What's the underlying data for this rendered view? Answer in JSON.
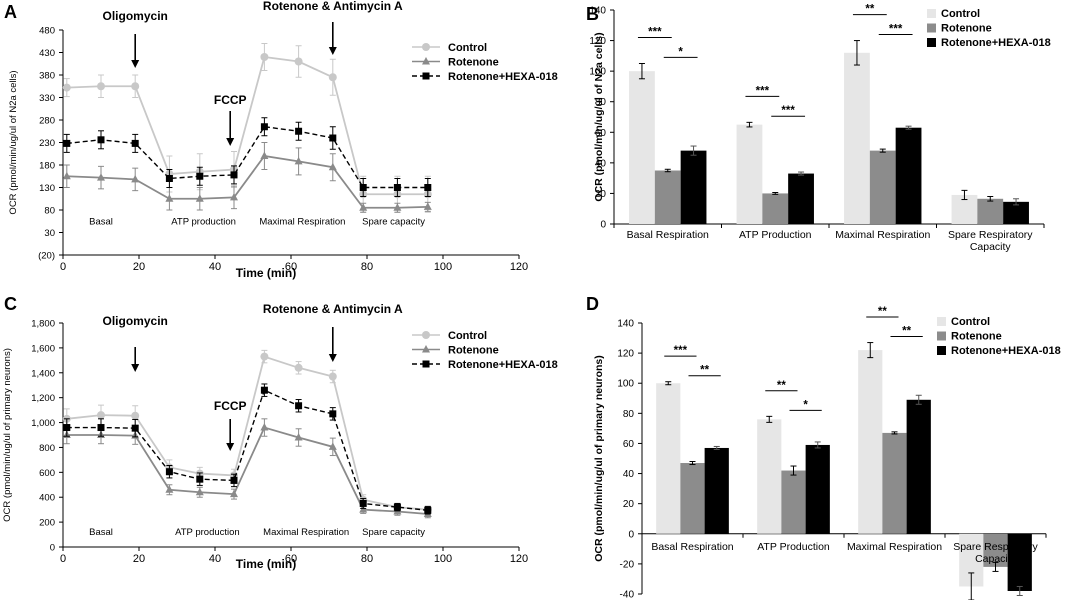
{
  "chart_data": [
    {
      "id": "A",
      "type": "line",
      "panel_label": "A",
      "ylabel": "OCR (pmol/min/ug/ul of N2a cells)",
      "xlabel": "Time (min)",
      "x": [
        1,
        10,
        19,
        28,
        36,
        45,
        53,
        62,
        71,
        79,
        88,
        96
      ],
      "xlim": [
        0,
        120
      ],
      "xticks": [
        0,
        20,
        40,
        60,
        80,
        100,
        120
      ],
      "xtick_labels": [
        "0",
        "20",
        "40",
        "60",
        "80",
        "100",
        "120"
      ],
      "ylim": [
        -20,
        480
      ],
      "yticks": [
        -20,
        30,
        80,
        130,
        180,
        230,
        280,
        330,
        380,
        430,
        480
      ],
      "ytick_labels": [
        "(20)",
        "30",
        "80",
        "130",
        "180",
        "230",
        "280",
        "330",
        "380",
        "430",
        "480"
      ],
      "series": [
        {
          "name": "Control",
          "color": "#c8c8c8",
          "marker": "circle",
          "dash": false,
          "values": [
            352,
            355,
            355,
            160,
            165,
            170,
            420,
            410,
            375,
            115,
            115,
            115
          ],
          "errors": [
            20,
            25,
            25,
            40,
            40,
            40,
            30,
            35,
            40,
            40,
            40,
            40
          ]
        },
        {
          "name": "Rotenone",
          "color": "#8a8a8a",
          "marker": "triangle",
          "dash": false,
          "values": [
            155,
            152,
            148,
            105,
            105,
            108,
            200,
            188,
            175,
            85,
            85,
            87
          ],
          "errors": [
            25,
            25,
            25,
            25,
            25,
            25,
            30,
            30,
            30,
            10,
            10,
            10
          ]
        },
        {
          "name": "Rotenone+HEXA-018",
          "color": "#000000",
          "marker": "square",
          "dash": true,
          "values": [
            228,
            236,
            228,
            150,
            155,
            158,
            265,
            255,
            240,
            130,
            130,
            130
          ],
          "errors": [
            20,
            20,
            20,
            20,
            20,
            20,
            20,
            20,
            25,
            20,
            20,
            20
          ]
        }
      ],
      "annotations": [
        {
          "text": "Oligomycin",
          "x": 19,
          "kind": "arrow"
        },
        {
          "text": "FCCP",
          "x": 44,
          "kind": "arrow"
        },
        {
          "text": "Rotenone & Antimycin A",
          "x": 71,
          "kind": "arrow"
        }
      ],
      "phase_labels": [
        {
          "text": "Basal",
          "x": 10
        },
        {
          "text": "ATP  production",
          "x": 37
        },
        {
          "text": "Maximal Respiration",
          "x": 63
        },
        {
          "text": "Spare capacity",
          "x": 87
        }
      ],
      "phase_value": 55
    },
    {
      "id": "B",
      "type": "bar",
      "panel_label": "B",
      "ylabel": "OCR (pmol/min/ug/ul of N2a cells)",
      "categories": [
        "Basal Respiration",
        "ATP Production",
        "Maximal Respiration",
        "Spare Respiratory Capacity"
      ],
      "category_lines": [
        [
          "Basal Respiration"
        ],
        [
          "ATP Production"
        ],
        [
          "Maximal Respiration"
        ],
        [
          "Spare Respiratory",
          "Capacity"
        ]
      ],
      "ylim": [
        0,
        140
      ],
      "yticks": [
        0,
        20,
        40,
        60,
        80,
        100,
        120,
        140
      ],
      "series": [
        {
          "name": "Control",
          "color": "#e6e6e6",
          "values": [
            100,
            65,
            112,
            19
          ],
          "errors": [
            5,
            1.5,
            8,
            3
          ]
        },
        {
          "name": "Rotenone",
          "color": "#8c8c8c",
          "values": [
            35,
            20,
            48,
            16.5
          ],
          "errors": [
            0.8,
            0.6,
            1,
            1.5
          ]
        },
        {
          "name": "Rotenone+HEXA-018",
          "color": "#000000",
          "values": [
            48,
            33,
            63,
            14.5
          ],
          "errors": [
            3,
            1,
            1,
            2
          ]
        }
      ],
      "significance": [
        {
          "group": 0,
          "from": 0,
          "to": 1,
          "label": "***"
        },
        {
          "group": 0,
          "from": 1,
          "to": 2,
          "label": "*"
        },
        {
          "group": 1,
          "from": 0,
          "to": 1,
          "label": "***"
        },
        {
          "group": 1,
          "from": 1,
          "to": 2,
          "label": "***"
        },
        {
          "group": 2,
          "from": 0,
          "to": 1,
          "label": "**"
        },
        {
          "group": 2,
          "from": 1,
          "to": 2,
          "label": "***"
        }
      ]
    },
    {
      "id": "C",
      "type": "line",
      "panel_label": "C",
      "ylabel": "OCR (pmol/min/ug/ul of primary neurons)",
      "xlabel": "Time (min)",
      "x": [
        1,
        10,
        19,
        28,
        36,
        45,
        53,
        62,
        71,
        79,
        88,
        96
      ],
      "xlim": [
        0,
        120
      ],
      "xticks": [
        0,
        20,
        40,
        60,
        80,
        100,
        120
      ],
      "xtick_labels": [
        "0",
        "20",
        "40",
        "60",
        "80",
        "100",
        "120"
      ],
      "ylim": [
        0,
        1800
      ],
      "yticks": [
        0,
        200,
        400,
        600,
        800,
        1000,
        1200,
        1400,
        1600,
        1800
      ],
      "ytick_labels": [
        "0",
        "200",
        "400",
        "600",
        "800",
        "1,000",
        "1,200",
        "1,400",
        "1,600",
        "1,800"
      ],
      "series": [
        {
          "name": "Control",
          "color": "#c8c8c8",
          "marker": "circle",
          "dash": false,
          "values": [
            1030,
            1060,
            1055,
            640,
            590,
            575,
            1530,
            1440,
            1370,
            380,
            320,
            300
          ],
          "errors": [
            80,
            80,
            80,
            60,
            50,
            50,
            50,
            50,
            50,
            40,
            30,
            30
          ]
        },
        {
          "name": "Rotenone",
          "color": "#8a8a8a",
          "marker": "triangle",
          "dash": false,
          "values": [
            900,
            900,
            895,
            460,
            440,
            425,
            960,
            880,
            805,
            300,
            285,
            265
          ],
          "errors": [
            70,
            70,
            70,
            40,
            40,
            40,
            70,
            70,
            70,
            30,
            30,
            30
          ]
        },
        {
          "name": "Rotenone+HEXA-018",
          "color": "#000000",
          "marker": "square",
          "dash": true,
          "values": [
            960,
            960,
            955,
            605,
            545,
            535,
            1260,
            1135,
            1070,
            350,
            320,
            295
          ],
          "errors": [
            70,
            70,
            70,
            50,
            50,
            50,
            50,
            50,
            50,
            40,
            30,
            30
          ]
        }
      ],
      "annotations": [
        {
          "text": "Oligomycin",
          "x": 19,
          "kind": "arrow"
        },
        {
          "text": "FCCP",
          "x": 44,
          "kind": "arrow"
        },
        {
          "text": "Rotenone & Antimycin A",
          "x": 71,
          "kind": "arrow"
        }
      ],
      "phase_labels": [
        {
          "text": "Basal",
          "x": 10
        },
        {
          "text": "ATP  production",
          "x": 38
        },
        {
          "text": "Maximal Respiration",
          "x": 64
        },
        {
          "text": "Spare capacity",
          "x": 87
        }
      ],
      "phase_value": 120
    },
    {
      "id": "D",
      "type": "bar",
      "panel_label": "D",
      "ylabel": "OCR (pmol/min/ug/ul of primary neurons)",
      "categories": [
        "Basal Respiration",
        "ATP Production",
        "Maximal Respiration",
        "Spare Respiratory Capacity"
      ],
      "category_lines": [
        [
          "Basal Respiration"
        ],
        [
          "ATP Production"
        ],
        [
          "Maximal Respiration"
        ],
        [
          "Spare Respiratory",
          "Capacity"
        ]
      ],
      "ylim": [
        -40,
        140
      ],
      "yticks": [
        -40,
        -20,
        0,
        20,
        40,
        60,
        80,
        100,
        120,
        140
      ],
      "series": [
        {
          "name": "Control",
          "color": "#e6e6e6",
          "values": [
            100,
            76,
            122,
            -35
          ],
          "errors": [
            1,
            2,
            5,
            9
          ]
        },
        {
          "name": "Rotenone",
          "color": "#8c8c8c",
          "values": [
            47,
            42,
            67,
            -22
          ],
          "errors": [
            1,
            3,
            0.7,
            3
          ]
        },
        {
          "name": "Rotenone+HEXA-018",
          "color": "#000000",
          "values": [
            57,
            59,
            89,
            -38
          ],
          "errors": [
            1,
            2,
            3,
            3
          ]
        }
      ],
      "significance": [
        {
          "group": 0,
          "from": 0,
          "to": 1,
          "label": "***"
        },
        {
          "group": 0,
          "from": 1,
          "to": 2,
          "label": "**"
        },
        {
          "group": 1,
          "from": 0,
          "to": 1,
          "label": "**"
        },
        {
          "group": 1,
          "from": 1,
          "to": 2,
          "label": "*"
        },
        {
          "group": 2,
          "from": 0,
          "to": 1,
          "label": "**"
        },
        {
          "group": 2,
          "from": 1,
          "to": 2,
          "label": "**"
        }
      ]
    }
  ]
}
